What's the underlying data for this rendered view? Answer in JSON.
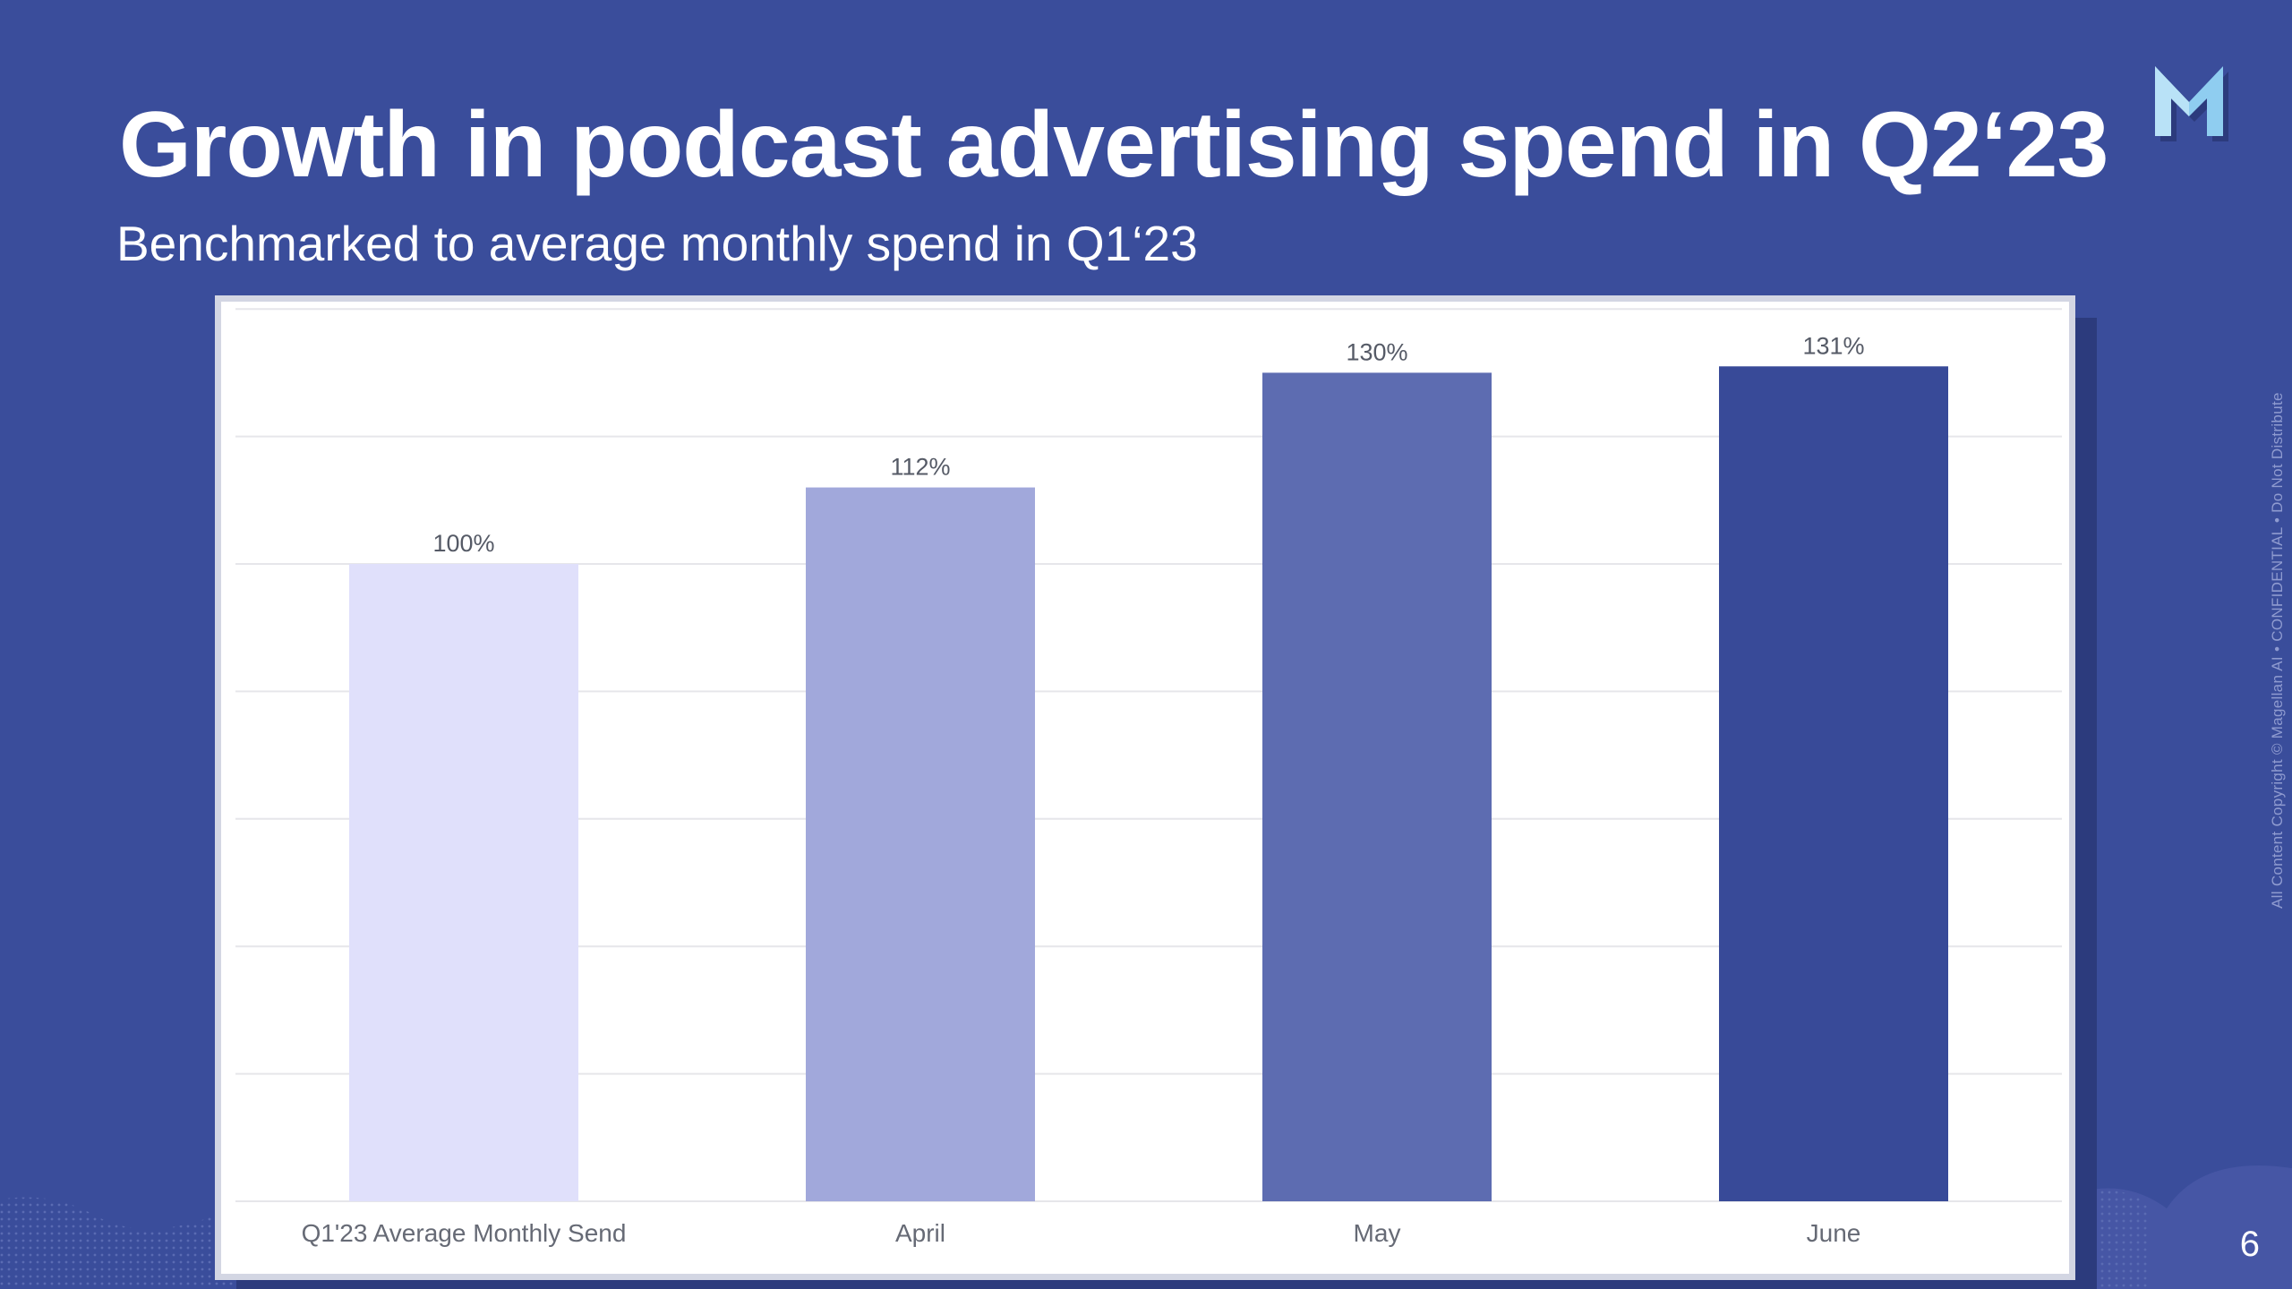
{
  "slide": {
    "title": "Growth in podcast advertising spend in Q2‘23",
    "subtitle": "Benchmarked to average monthly spend in Q1‘23",
    "page_number": "6",
    "confidential_notice": "All Content Copyright © Magellan AI  •  CONFIDENTIAL  •  Do Not Distribute",
    "logo_icon": "magellan-m-logo-icon"
  },
  "chart_data": {
    "type": "bar",
    "categories": [
      "Q1'23 Average Monthly Send",
      "April",
      "May",
      "June"
    ],
    "values": [
      100,
      112,
      130,
      131
    ],
    "value_labels": [
      "100%",
      "112%",
      "130%",
      "131%"
    ],
    "colors": [
      "#e0e0fb",
      "#a1a8db",
      "#5d6cb1",
      "#384a98"
    ],
    "ylim": [
      0,
      140
    ],
    "grid": true,
    "gridline_step": 20,
    "title": "",
    "xlabel": "",
    "ylabel": ""
  }
}
